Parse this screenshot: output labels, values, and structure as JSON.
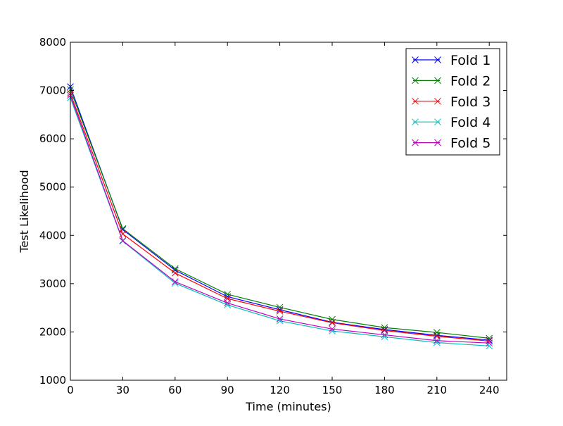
{
  "chart_data": {
    "type": "line",
    "title": "",
    "xlabel": "Time (minutes)",
    "ylabel": "Test Likelihood",
    "xlim": [
      0,
      250
    ],
    "ylim": [
      1000,
      8000
    ],
    "xticks": [
      0,
      30,
      60,
      90,
      120,
      150,
      180,
      210,
      240
    ],
    "yticks": [
      1000,
      2000,
      3000,
      4000,
      5000,
      6000,
      7000,
      8000
    ],
    "grid": false,
    "legend_position": "top-right",
    "marker": "x",
    "x": [
      0,
      30,
      60,
      90,
      120,
      150,
      180,
      210,
      240
    ],
    "series": [
      {
        "name": "Fold 1",
        "color": "#0000ff",
        "values": [
          7080,
          4120,
          3280,
          2730,
          2460,
          2200,
          2050,
          1930,
          1830
        ]
      },
      {
        "name": "Fold 2",
        "color": "#008000",
        "values": [
          7020,
          4140,
          3310,
          2780,
          2510,
          2260,
          2090,
          1990,
          1870
        ]
      },
      {
        "name": "Fold 3",
        "color": "#ff0000",
        "values": [
          6940,
          4030,
          3220,
          2690,
          2430,
          2190,
          2030,
          1910,
          1810
        ]
      },
      {
        "name": "Fold 4",
        "color": "#00bfbf",
        "values": [
          6850,
          3880,
          3010,
          2560,
          2230,
          2020,
          1900,
          1780,
          1710
        ]
      },
      {
        "name": "Fold 5",
        "color": "#bf00bf",
        "values": [
          6900,
          3890,
          3040,
          2600,
          2270,
          2060,
          1940,
          1820,
          1770
        ]
      }
    ]
  }
}
